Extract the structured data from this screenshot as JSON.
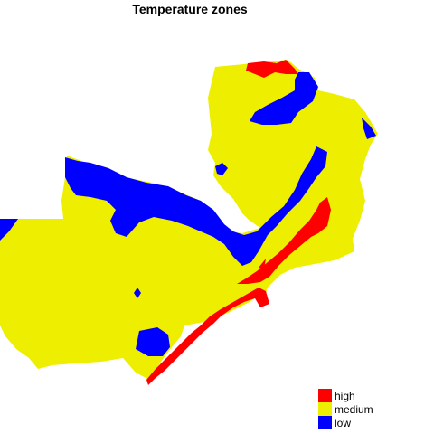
{
  "title": "Temperature zones",
  "legend": {
    "items": [
      {
        "label": "high",
        "color": "#ff0000"
      },
      {
        "label": "medium",
        "color": "#eeee00"
      },
      {
        "label": "low",
        "color": "#0000ff"
      }
    ]
  }
}
